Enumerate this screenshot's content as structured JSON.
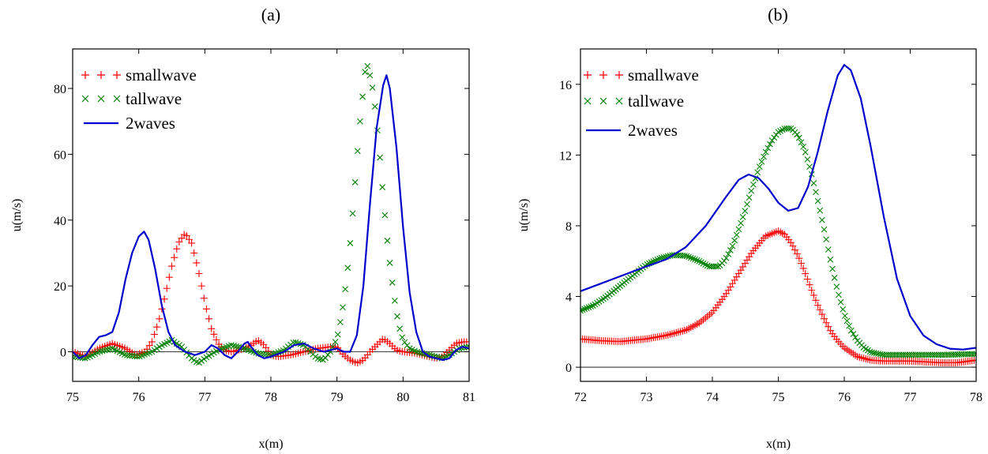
{
  "chart_data": [
    {
      "type": "line",
      "title": "(a)",
      "xlabel": "x(m)",
      "ylabel": "u(m/s)",
      "xlim": [
        75,
        81
      ],
      "ylim": [
        -9,
        92
      ],
      "xticks": [
        75,
        76,
        77,
        78,
        79,
        80,
        81
      ],
      "yticks": [
        0,
        20,
        40,
        60,
        80
      ],
      "zero_line": true,
      "legend_position": "top-left",
      "series": [
        {
          "name": "smallwave",
          "style": "plus-markers",
          "color": "#ff0000",
          "points": [
            [
              75.0,
              0
            ],
            [
              75.2,
              -1.5
            ],
            [
              75.4,
              1
            ],
            [
              75.6,
              2.5
            ],
            [
              75.8,
              1
            ],
            [
              75.95,
              -1
            ],
            [
              76.1,
              0
            ],
            [
              76.2,
              3
            ],
            [
              76.3,
              9
            ],
            [
              76.4,
              17
            ],
            [
              76.5,
              26
            ],
            [
              76.6,
              33
            ],
            [
              76.7,
              36
            ],
            [
              76.8,
              33
            ],
            [
              76.9,
              25
            ],
            [
              77.0,
              15
            ],
            [
              77.1,
              7
            ],
            [
              77.2,
              2.5
            ],
            [
              77.3,
              0.5
            ],
            [
              77.4,
              0
            ],
            [
              77.5,
              0.5
            ],
            [
              77.6,
              1
            ],
            [
              77.7,
              2
            ],
            [
              77.8,
              3.5
            ],
            [
              77.9,
              2
            ],
            [
              78.0,
              -1
            ],
            [
              78.1,
              -1.5
            ],
            [
              78.3,
              -1
            ],
            [
              78.5,
              0
            ],
            [
              78.7,
              1
            ],
            [
              78.9,
              1.5
            ],
            [
              79.0,
              1.5
            ],
            [
              79.1,
              -1
            ],
            [
              79.2,
              -2.5
            ],
            [
              79.3,
              -3.5
            ],
            [
              79.4,
              -2.5
            ],
            [
              79.5,
              0
            ],
            [
              79.6,
              2
            ],
            [
              79.7,
              4
            ],
            [
              79.8,
              2.5
            ],
            [
              79.9,
              0.5
            ],
            [
              80.0,
              0
            ],
            [
              80.2,
              -0.5
            ],
            [
              80.4,
              -1.5
            ],
            [
              80.5,
              -2
            ],
            [
              80.6,
              -1.5
            ],
            [
              80.7,
              0.5
            ],
            [
              80.8,
              2.5
            ],
            [
              80.9,
              3
            ],
            [
              81.0,
              3
            ]
          ]
        },
        {
          "name": "tallwave",
          "style": "x-markers",
          "color": "#008000",
          "points": [
            [
              75.0,
              -1.5
            ],
            [
              75.2,
              -2
            ],
            [
              75.4,
              0
            ],
            [
              75.6,
              1
            ],
            [
              75.8,
              -1
            ],
            [
              76.0,
              -1.5
            ],
            [
              76.2,
              0
            ],
            [
              76.35,
              2
            ],
            [
              76.5,
              3.5
            ],
            [
              76.65,
              1.5
            ],
            [
              76.8,
              -2
            ],
            [
              76.9,
              -3.5
            ],
            [
              77.0,
              -2
            ],
            [
              77.2,
              0.5
            ],
            [
              77.4,
              2
            ],
            [
              77.6,
              1
            ],
            [
              77.8,
              -0.5
            ],
            [
              78.0,
              -1
            ],
            [
              78.2,
              0.5
            ],
            [
              78.35,
              3
            ],
            [
              78.5,
              2
            ],
            [
              78.6,
              0
            ],
            [
              78.7,
              -2
            ],
            [
              78.8,
              -2.5
            ],
            [
              78.9,
              0
            ],
            [
              79.0,
              4
            ],
            [
              79.05,
              9
            ],
            [
              79.1,
              15
            ],
            [
              79.15,
              23
            ],
            [
              79.2,
              33
            ],
            [
              79.25,
              45
            ],
            [
              79.3,
              58
            ],
            [
              79.35,
              70
            ],
            [
              79.4,
              80
            ],
            [
              79.43,
              86
            ],
            [
              79.47,
              87
            ],
            [
              79.5,
              84
            ],
            [
              79.55,
              79
            ],
            [
              79.6,
              70
            ],
            [
              79.65,
              59
            ],
            [
              79.7,
              47
            ],
            [
              79.75,
              36
            ],
            [
              79.8,
              27
            ],
            [
              79.85,
              19
            ],
            [
              79.9,
              12
            ],
            [
              79.95,
              7
            ],
            [
              80.0,
              3.5
            ],
            [
              80.1,
              1
            ],
            [
              80.2,
              0
            ],
            [
              80.3,
              -0.5
            ],
            [
              80.5,
              -1.5
            ],
            [
              80.6,
              -2
            ],
            [
              80.7,
              -1
            ],
            [
              80.85,
              1
            ],
            [
              81.0,
              1.5
            ]
          ]
        },
        {
          "name": "2waves",
          "style": "line",
          "color": "#0000cc",
          "points": [
            [
              75.0,
              0
            ],
            [
              75.1,
              -2
            ],
            [
              75.2,
              -1
            ],
            [
              75.3,
              2
            ],
            [
              75.4,
              4.5
            ],
            [
              75.5,
              5
            ],
            [
              75.6,
              6
            ],
            [
              75.7,
              12
            ],
            [
              75.8,
              22
            ],
            [
              75.9,
              30
            ],
            [
              76.0,
              35
            ],
            [
              76.08,
              36.5
            ],
            [
              76.15,
              34
            ],
            [
              76.25,
              25
            ],
            [
              76.35,
              14
            ],
            [
              76.45,
              6
            ],
            [
              76.55,
              2
            ],
            [
              76.7,
              0
            ],
            [
              76.85,
              -1
            ],
            [
              77.0,
              0
            ],
            [
              77.1,
              2
            ],
            [
              77.2,
              1
            ],
            [
              77.3,
              -1
            ],
            [
              77.4,
              -2
            ],
            [
              77.5,
              0
            ],
            [
              77.6,
              2.5
            ],
            [
              77.65,
              3
            ],
            [
              77.7,
              1.5
            ],
            [
              77.8,
              -1
            ],
            [
              77.9,
              -2
            ],
            [
              78.0,
              -1.5
            ],
            [
              78.2,
              0
            ],
            [
              78.35,
              2
            ],
            [
              78.5,
              2.5
            ],
            [
              78.65,
              1
            ],
            [
              78.8,
              0
            ],
            [
              78.9,
              0.5
            ],
            [
              79.0,
              1
            ],
            [
              79.1,
              0
            ],
            [
              79.2,
              0
            ],
            [
              79.3,
              5
            ],
            [
              79.4,
              20
            ],
            [
              79.5,
              45
            ],
            [
              79.6,
              68
            ],
            [
              79.7,
              81
            ],
            [
              79.75,
              84
            ],
            [
              79.8,
              80
            ],
            [
              79.9,
              62
            ],
            [
              80.0,
              38
            ],
            [
              80.1,
              18
            ],
            [
              80.2,
              6
            ],
            [
              80.3,
              0
            ],
            [
              80.4,
              -1.5
            ],
            [
              80.5,
              -2
            ],
            [
              80.6,
              -2.5
            ],
            [
              80.7,
              -2
            ],
            [
              80.8,
              0.5
            ],
            [
              80.9,
              1.5
            ],
            [
              81.0,
              1
            ]
          ]
        }
      ]
    },
    {
      "type": "line",
      "title": "(b)",
      "xlabel": "x(m)",
      "ylabel": "u(m/s)",
      "xlim": [
        72,
        78
      ],
      "ylim": [
        -0.8,
        18
      ],
      "xticks": [
        72,
        73,
        74,
        75,
        76,
        77,
        78
      ],
      "yticks": [
        0,
        4,
        8,
        12,
        16
      ],
      "zero_line": true,
      "legend_position": "top-left",
      "series": [
        {
          "name": "smallwave",
          "style": "plus-markers",
          "color": "#ff0000",
          "points": [
            [
              72.0,
              1.6
            ],
            [
              72.3,
              1.5
            ],
            [
              72.6,
              1.45
            ],
            [
              73.0,
              1.6
            ],
            [
              73.3,
              1.8
            ],
            [
              73.6,
              2.1
            ],
            [
              73.8,
              2.5
            ],
            [
              74.0,
              3.1
            ],
            [
              74.2,
              4.1
            ],
            [
              74.4,
              5.3
            ],
            [
              74.6,
              6.5
            ],
            [
              74.8,
              7.4
            ],
            [
              75.0,
              7.7
            ],
            [
              75.1,
              7.5
            ],
            [
              75.2,
              7.0
            ],
            [
              75.3,
              6.3
            ],
            [
              75.4,
              5.4
            ],
            [
              75.5,
              4.4
            ],
            [
              75.6,
              3.5
            ],
            [
              75.7,
              2.7
            ],
            [
              75.8,
              2.0
            ],
            [
              75.9,
              1.5
            ],
            [
              76.0,
              1.1
            ],
            [
              76.2,
              0.6
            ],
            [
              76.4,
              0.4
            ],
            [
              76.6,
              0.35
            ],
            [
              77.0,
              0.35
            ],
            [
              77.5,
              0.25
            ],
            [
              77.7,
              0.25
            ],
            [
              78.0,
              0.4
            ]
          ]
        },
        {
          "name": "tallwave",
          "style": "x-markers",
          "color": "#008000",
          "points": [
            [
              72.0,
              3.2
            ],
            [
              72.2,
              3.5
            ],
            [
              72.4,
              4.0
            ],
            [
              72.6,
              4.6
            ],
            [
              72.8,
              5.2
            ],
            [
              73.0,
              5.8
            ],
            [
              73.2,
              6.15
            ],
            [
              73.4,
              6.35
            ],
            [
              73.6,
              6.3
            ],
            [
              73.8,
              6.0
            ],
            [
              73.95,
              5.7
            ],
            [
              74.1,
              5.7
            ],
            [
              74.2,
              6.1
            ],
            [
              74.3,
              6.8
            ],
            [
              74.4,
              7.8
            ],
            [
              74.5,
              8.9
            ],
            [
              74.6,
              10.1
            ],
            [
              74.7,
              11.2
            ],
            [
              74.8,
              12.1
            ],
            [
              74.9,
              12.8
            ],
            [
              75.0,
              13.3
            ],
            [
              75.1,
              13.5
            ],
            [
              75.2,
              13.5
            ],
            [
              75.3,
              13.1
            ],
            [
              75.4,
              12.3
            ],
            [
              75.5,
              11.0
            ],
            [
              75.6,
              9.4
            ],
            [
              75.7,
              7.7
            ],
            [
              75.8,
              5.9
            ],
            [
              75.9,
              4.3
            ],
            [
              76.0,
              3.0
            ],
            [
              76.1,
              2.1
            ],
            [
              76.2,
              1.5
            ],
            [
              76.3,
              1.1
            ],
            [
              76.4,
              0.85
            ],
            [
              76.6,
              0.7
            ],
            [
              77.0,
              0.7
            ],
            [
              77.5,
              0.7
            ],
            [
              78.0,
              0.75
            ]
          ]
        },
        {
          "name": "2waves",
          "style": "line",
          "color": "#0000cc",
          "points": [
            [
              72.0,
              4.3
            ],
            [
              72.5,
              5.0
            ],
            [
              73.0,
              5.7
            ],
            [
              73.3,
              6.1
            ],
            [
              73.6,
              6.8
            ],
            [
              73.9,
              8.0
            ],
            [
              74.2,
              9.6
            ],
            [
              74.4,
              10.6
            ],
            [
              74.55,
              10.9
            ],
            [
              74.7,
              10.7
            ],
            [
              74.85,
              10.1
            ],
            [
              75.0,
              9.3
            ],
            [
              75.15,
              8.85
            ],
            [
              75.3,
              9.0
            ],
            [
              75.45,
              10.2
            ],
            [
              75.6,
              12.2
            ],
            [
              75.75,
              14.5
            ],
            [
              75.9,
              16.5
            ],
            [
              76.0,
              17.1
            ],
            [
              76.1,
              16.8
            ],
            [
              76.25,
              15.2
            ],
            [
              76.4,
              12.5
            ],
            [
              76.6,
              8.5
            ],
            [
              76.8,
              5.0
            ],
            [
              77.0,
              2.9
            ],
            [
              77.2,
              1.8
            ],
            [
              77.4,
              1.3
            ],
            [
              77.6,
              1.05
            ],
            [
              77.8,
              1.0
            ],
            [
              78.0,
              1.1
            ]
          ]
        }
      ]
    }
  ]
}
